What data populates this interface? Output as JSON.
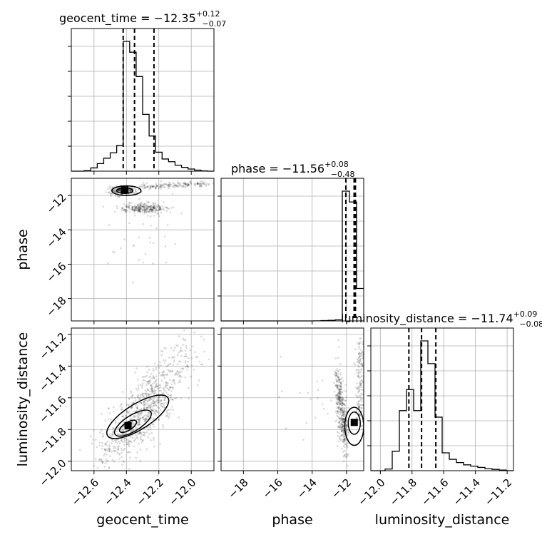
{
  "chart_data": {
    "type": "corner",
    "parameters": [
      "geocent_time",
      "phase",
      "luminosity_distance"
    ],
    "grid": true,
    "titles": [
      {
        "name": "geocent_time",
        "prefix": "geocent_time = −12.35",
        "upper": "+0.12",
        "lower": "−0.07"
      },
      {
        "name": "phase",
        "prefix": "phase = −11.56",
        "upper": "+0.08",
        "lower": "−0.48"
      },
      {
        "name": "luminosity_distance",
        "prefix": "luminosity_distance = −11.74",
        "upper": "+0.09",
        "lower": "−0.08"
      }
    ],
    "ranges": {
      "geocent_time": [
        -12.74,
        -11.86
      ],
      "phase": [
        -19.3,
        -11.0
      ],
      "luminosity_distance": [
        -12.06,
        -11.16
      ]
    },
    "ticks": {
      "geocent_time": {
        "values": [
          -12.6,
          -12.4,
          -12.2,
          -12.0
        ],
        "labels": [
          "−12.6",
          "−12.4",
          "−12.2",
          "−12.0"
        ]
      },
      "phase": {
        "values": [
          -18,
          -16,
          -14,
          -12
        ],
        "labels": [
          "−18",
          "−16",
          "−14",
          "−12"
        ]
      },
      "luminosity_distance": {
        "values": [
          -12.0,
          -11.8,
          -11.6,
          -11.4,
          -11.2
        ],
        "labels": [
          "−12.0",
          "−11.8",
          "−11.6",
          "−11.4",
          "−11.2"
        ]
      }
    },
    "quantiles": {
      "geocent_time": [
        -12.42,
        -12.35,
        -12.23
      ],
      "phase": [
        -12.04,
        -11.56,
        -11.48
      ],
      "luminosity_distance": [
        -11.82,
        -11.74,
        -11.65
      ]
    },
    "histograms": {
      "geocent_time": {
        "edges": [
          -12.74,
          -12.7,
          -12.66,
          -12.62,
          -12.58,
          -12.54,
          -12.5,
          -12.46,
          -12.42,
          -12.38,
          -12.34,
          -12.3,
          -12.26,
          -12.22,
          -12.18,
          -12.14,
          -12.1,
          -12.06,
          -12.02,
          -11.98,
          -11.94,
          -11.9,
          -11.86
        ],
        "counts": [
          0,
          0,
          2,
          12,
          28,
          48,
          68,
          95,
          480,
          440,
          350,
          210,
          130,
          70,
          45,
          35,
          22,
          14,
          8,
          4,
          1,
          0
        ]
      },
      "phase": {
        "edges": [
          -19.3,
          -18.885,
          -18.47,
          -18.055,
          -17.64,
          -17.225,
          -16.81,
          -16.395,
          -15.98,
          -15.565,
          -15.15,
          -14.735,
          -14.32,
          -13.905,
          -13.49,
          -13.075,
          -12.66,
          -12.245,
          -11.83,
          -11.415,
          -11.0
        ],
        "counts": [
          0,
          0,
          0,
          0,
          0,
          0,
          0,
          0,
          0,
          0,
          0,
          0,
          0,
          1,
          3,
          6,
          10,
          1200,
          1100,
          300
        ]
      },
      "luminosity_distance": {
        "edges": [
          -12.06,
          -12.015,
          -11.97,
          -11.925,
          -11.88,
          -11.835,
          -11.79,
          -11.745,
          -11.7,
          -11.655,
          -11.61,
          -11.565,
          -11.52,
          -11.475,
          -11.43,
          -11.385,
          -11.34,
          -11.295,
          -11.25,
          -11.205,
          -11.16
        ],
        "counts": [
          0,
          0,
          5,
          60,
          185,
          250,
          185,
          400,
          330,
          165,
          55,
          35,
          25,
          18,
          14,
          10,
          6,
          4,
          2,
          0
        ]
      }
    },
    "scatter_color": "#000000",
    "contour_fill": "#808080",
    "line_color": "#000000"
  }
}
